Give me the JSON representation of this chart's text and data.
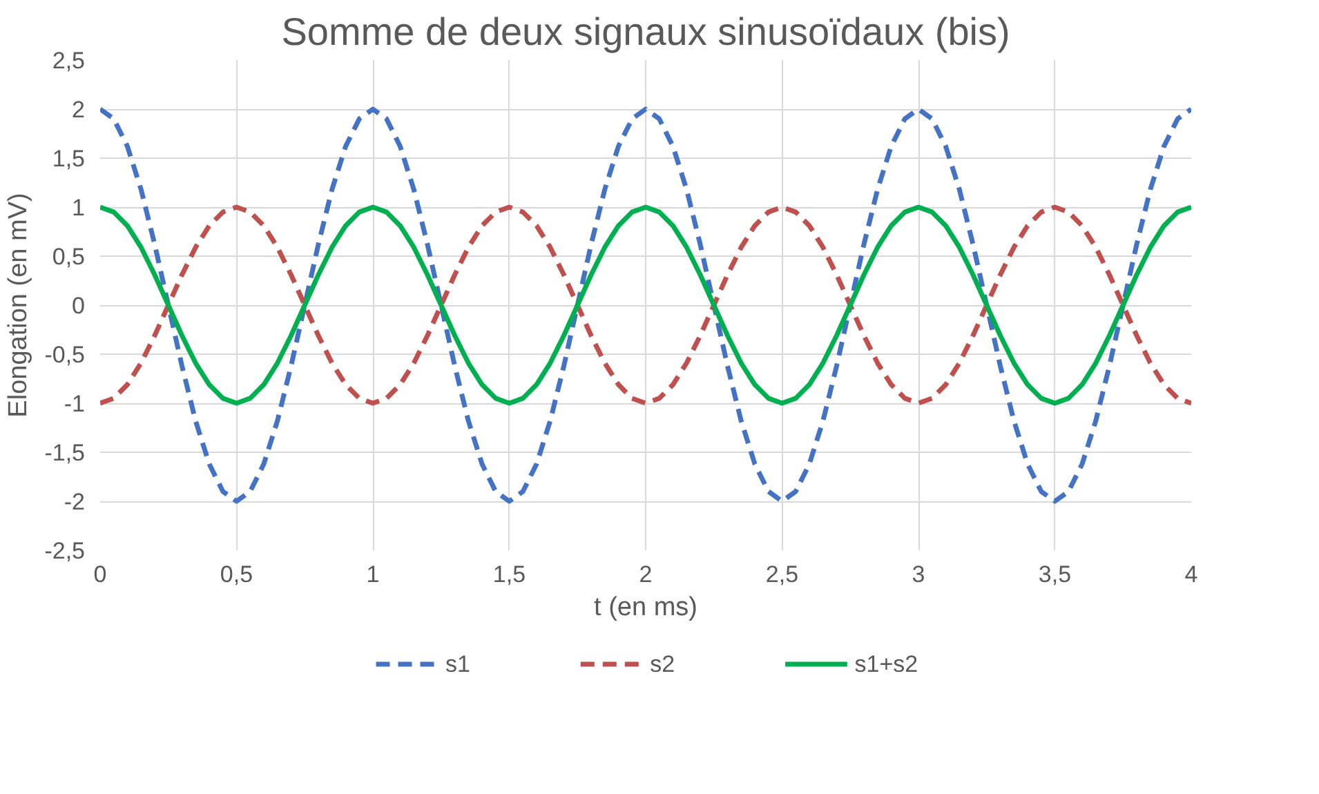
{
  "chart_data": {
    "type": "line",
    "title": "Somme de deux signaux sinusoïdaux (bis)",
    "xlabel": "t (en ms)",
    "ylabel": "Elongation (en mV)",
    "x": [
      0,
      0.05,
      0.1,
      0.15,
      0.2,
      0.25,
      0.3,
      0.35,
      0.4,
      0.45,
      0.5,
      0.55,
      0.6,
      0.65,
      0.7,
      0.75,
      0.8,
      0.85,
      0.9,
      0.95,
      1,
      1.05,
      1.1,
      1.15,
      1.2,
      1.25,
      1.3,
      1.35,
      1.4,
      1.45,
      1.5,
      1.55,
      1.6,
      1.65,
      1.7,
      1.75,
      1.8,
      1.85,
      1.9,
      1.95,
      2,
      2.05,
      2.1,
      2.15,
      2.2,
      2.25,
      2.3,
      2.35,
      2.4,
      2.45,
      2.5,
      2.55,
      2.6,
      2.65,
      2.7,
      2.75,
      2.8,
      2.85,
      2.9,
      2.95,
      3,
      3.05,
      3.1,
      3.15,
      3.2,
      3.25,
      3.3,
      3.35,
      3.4,
      3.45,
      3.5,
      3.55,
      3.6,
      3.65,
      3.7,
      3.75,
      3.8,
      3.85,
      3.9,
      3.95,
      4
    ],
    "series": [
      {
        "name": "s1",
        "color": "#4472c4",
        "line_style": "dashed",
        "values": [
          2,
          1.9,
          1.62,
          1.18,
          0.62,
          0,
          -0.62,
          -1.18,
          -1.62,
          -1.9,
          -2,
          -1.9,
          -1.62,
          -1.18,
          -0.62,
          0,
          0.62,
          1.18,
          1.62,
          1.9,
          2,
          1.9,
          1.62,
          1.18,
          0.62,
          0,
          -0.62,
          -1.18,
          -1.62,
          -1.9,
          -2,
          -1.9,
          -1.62,
          -1.18,
          -0.62,
          0,
          0.62,
          1.18,
          1.62,
          1.9,
          2,
          1.9,
          1.62,
          1.18,
          0.62,
          0,
          -0.62,
          -1.18,
          -1.62,
          -1.9,
          -2,
          -1.9,
          -1.62,
          -1.18,
          -0.62,
          0,
          0.62,
          1.18,
          1.62,
          1.9,
          2,
          1.9,
          1.62,
          1.18,
          0.62,
          0,
          -0.62,
          -1.18,
          -1.62,
          -1.9,
          -2,
          -1.9,
          -1.62,
          -1.18,
          -0.62,
          0,
          0.62,
          1.18,
          1.62,
          1.9,
          2
        ]
      },
      {
        "name": "s2",
        "color": "#c0504d",
        "line_style": "dashed",
        "values": [
          -1,
          -0.95,
          -0.81,
          -0.59,
          -0.31,
          0,
          0.31,
          0.59,
          0.81,
          0.95,
          1,
          0.95,
          0.81,
          0.59,
          0.31,
          0,
          -0.31,
          -0.59,
          -0.81,
          -0.95,
          -1,
          -0.95,
          -0.81,
          -0.59,
          -0.31,
          0,
          0.31,
          0.59,
          0.81,
          0.95,
          1,
          0.95,
          0.81,
          0.59,
          0.31,
          0,
          -0.31,
          -0.59,
          -0.81,
          -0.95,
          -1,
          -0.95,
          -0.81,
          -0.59,
          -0.31,
          0,
          0.31,
          0.59,
          0.81,
          0.95,
          1,
          0.95,
          0.81,
          0.59,
          0.31,
          0,
          -0.31,
          -0.59,
          -0.81,
          -0.95,
          -1,
          -0.95,
          -0.81,
          -0.59,
          -0.31,
          0,
          0.31,
          0.59,
          0.81,
          0.95,
          1,
          0.95,
          0.81,
          0.59,
          0.31,
          0,
          -0.31,
          -0.59,
          -0.81,
          -0.95,
          -1
        ]
      },
      {
        "name": "s1+s2",
        "color": "#00b050",
        "line_style": "solid",
        "values": [
          1,
          0.95,
          0.81,
          0.59,
          0.31,
          0,
          -0.31,
          -0.59,
          -0.81,
          -0.95,
          -1,
          -0.95,
          -0.81,
          -0.59,
          -0.31,
          0,
          0.31,
          0.59,
          0.81,
          0.95,
          1,
          0.95,
          0.81,
          0.59,
          0.31,
          0,
          -0.31,
          -0.59,
          -0.81,
          -0.95,
          -1,
          -0.95,
          -0.81,
          -0.59,
          -0.31,
          0,
          0.31,
          0.59,
          0.81,
          0.95,
          1,
          0.95,
          0.81,
          0.59,
          0.31,
          0,
          -0.31,
          -0.59,
          -0.81,
          -0.95,
          -1,
          -0.95,
          -0.81,
          -0.59,
          -0.31,
          0,
          0.31,
          0.59,
          0.81,
          0.95,
          1,
          0.95,
          0.81,
          0.59,
          0.31,
          0,
          -0.31,
          -0.59,
          -0.81,
          -0.95,
          -1,
          -0.95,
          -0.81,
          -0.59,
          -0.31,
          0,
          0.31,
          0.59,
          0.81,
          0.95,
          1
        ]
      }
    ],
    "xlim": [
      0,
      4
    ],
    "ylim": [
      -2.5,
      2.5
    ],
    "xticks": [
      0,
      {
        "value": 0.5,
        "label": "0,5"
      },
      1,
      {
        "value": 1.5,
        "label": "1,5"
      },
      2,
      {
        "value": 2.5,
        "label": "2,5"
      },
      3,
      {
        "value": 3.5,
        "label": "3,5"
      },
      4
    ],
    "yticks": [
      {
        "value": -2.5,
        "label": "-2,5"
      },
      -2,
      {
        "value": -1.5,
        "label": "-1,5"
      },
      -1,
      {
        "value": -0.5,
        "label": "-0,5"
      },
      0,
      {
        "value": 0.5,
        "label": "0,5"
      },
      1,
      {
        "value": 1.5,
        "label": "1,5"
      },
      2,
      {
        "value": 2.5,
        "label": "2,5"
      }
    ],
    "grid": true,
    "legend": "bottom",
    "marker": "none"
  }
}
